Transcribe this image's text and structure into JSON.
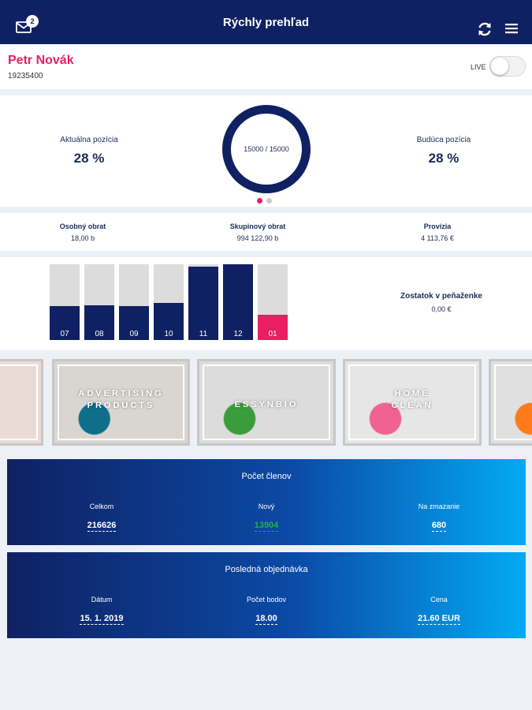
{
  "header": {
    "title": "Rýchly prehľad",
    "mail_badge": "2",
    "icons": [
      "mail-icon",
      "refresh-icon",
      "menu-icon"
    ]
  },
  "user": {
    "name": "Petr Novák",
    "id": "19235400",
    "live_label": "LIVE",
    "live_on": false
  },
  "position": {
    "current_label": "Aktuálna pozícia",
    "current_value": "28 %",
    "future_label": "Budúca pozícia",
    "future_value": "28 %",
    "ring_text": "15000 / 15000",
    "ring_fraction": 1.0,
    "page_dots": 2,
    "active_dot": 0
  },
  "turnover": {
    "personal_label": "Osobný obrat",
    "personal_value": "18,00 b",
    "group_label": "Skupinový obrat",
    "group_value": "994 122,90 b",
    "commission_label": "Provízia",
    "commission_value": "4 113,76 €"
  },
  "chart_data": {
    "type": "bar",
    "categories": [
      "07",
      "08",
      "09",
      "10",
      "11",
      "12",
      "01"
    ],
    "values": [
      0.45,
      0.46,
      0.45,
      0.49,
      0.97,
      1.0,
      0.33
    ],
    "highlight_index": 6
  },
  "wallet": {
    "label": "Zostatok v peňaženke",
    "value": "0,00 €"
  },
  "categories": [
    {
      "label": "",
      "bg": "#eadbd6",
      "accent": "#f28b6d"
    },
    {
      "label": "ADVERTISING PRODUCTS",
      "bg": "#d9d6d2",
      "accent": "#0e6f8a"
    },
    {
      "label": "ESSYNBIO",
      "bg": "#dcdcdc",
      "accent": "#3a9d3a"
    },
    {
      "label": "HOME CLEAN",
      "bg": "#e6e6e6",
      "accent": "#f06292"
    },
    {
      "label": "",
      "bg": "#e0e0e0",
      "accent": "#ff7a1a"
    }
  ],
  "members": {
    "title": "Počet členov",
    "total_label": "Celkom",
    "total_value": "216626",
    "new_label": "Nový",
    "new_value": "13904",
    "delete_label": "Na zmazanie",
    "delete_value": "680"
  },
  "last_order": {
    "title": "Posledná objednávka",
    "date_label": "Dátum",
    "date_value": "15. 1. 2019",
    "points_label": "Počet bodov",
    "points_value": "18.00",
    "price_label": "Cena",
    "price_value": "21.60 EUR"
  },
  "colors": {
    "navy": "#0f2163",
    "pink": "#e91e63",
    "cyan": "#03aaf4",
    "green": "#21b24a"
  }
}
